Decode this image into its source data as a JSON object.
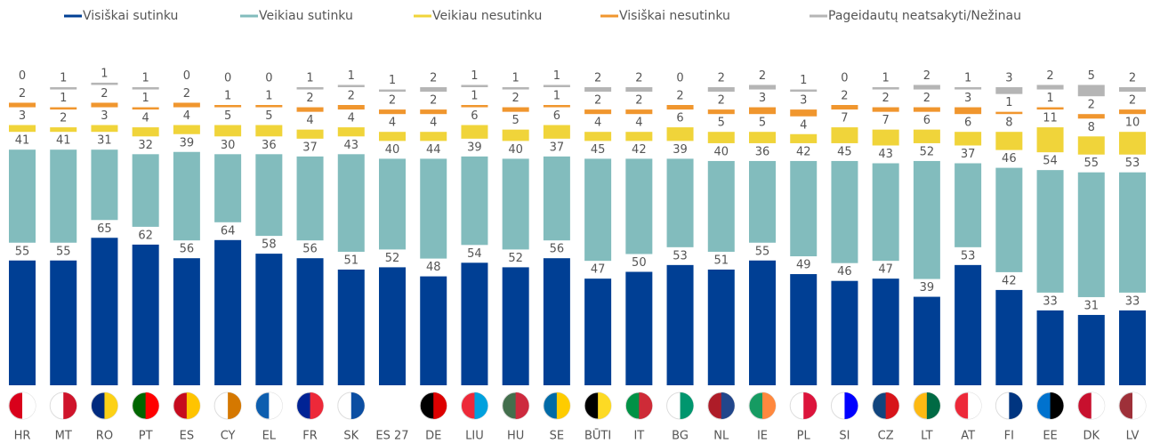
{
  "chart_data": {
    "type": "stacked_bar",
    "categories": [
      "HR",
      "MT",
      "RO",
      "PT",
      "ES",
      "CY",
      "EL",
      "FR",
      "SK",
      "ES 27",
      "DE",
      "LIU",
      "HU",
      "SE",
      "BŪTI",
      "IT",
      "BG",
      "NL",
      "IE",
      "PL",
      "SI",
      "CZ",
      "LT",
      "AT",
      "FI",
      "EE",
      "DK",
      "LV"
    ],
    "series": [
      {
        "name": "Visiškai sutinku",
        "color": "#003f94",
        "values": [
          55,
          55,
          65,
          62,
          56,
          64,
          58,
          56,
          51,
          52,
          48,
          54,
          52,
          56,
          47,
          50,
          53,
          51,
          55,
          49,
          46,
          47,
          39,
          53,
          42,
          33,
          31,
          33
        ]
      },
      {
        "name": "Veikiau sutinku",
        "color": "#82bcbd",
        "values": [
          41,
          41,
          31,
          32,
          39,
          30,
          36,
          37,
          43,
          40,
          44,
          39,
          40,
          37,
          45,
          42,
          39,
          40,
          36,
          42,
          45,
          43,
          52,
          37,
          46,
          54,
          55,
          53
        ]
      },
      {
        "name": "Veikiau nesutinku",
        "color": "#f0d43a",
        "values": [
          3,
          2,
          3,
          4,
          4,
          5,
          5,
          4,
          4,
          4,
          4,
          6,
          5,
          6,
          4,
          4,
          6,
          5,
          5,
          4,
          7,
          7,
          6,
          6,
          8,
          11,
          8,
          10
        ]
      },
      {
        "name": "Visiškai nesutinku",
        "color": "#f0962e",
        "values": [
          2,
          1,
          2,
          1,
          2,
          1,
          1,
          2,
          2,
          2,
          2,
          1,
          2,
          1,
          2,
          2,
          2,
          2,
          3,
          3,
          2,
          2,
          2,
          3,
          1,
          1,
          2,
          2
        ]
      },
      {
        "name": "Pageidautų neatsakyti/Nežinau",
        "color": "#b5b5b5",
        "values": [
          0,
          1,
          1,
          1,
          0,
          0,
          0,
          1,
          1,
          1,
          2,
          1,
          1,
          1,
          2,
          2,
          0,
          2,
          2,
          1,
          0,
          1,
          2,
          1,
          3,
          2,
          5,
          2
        ]
      }
    ]
  }
}
